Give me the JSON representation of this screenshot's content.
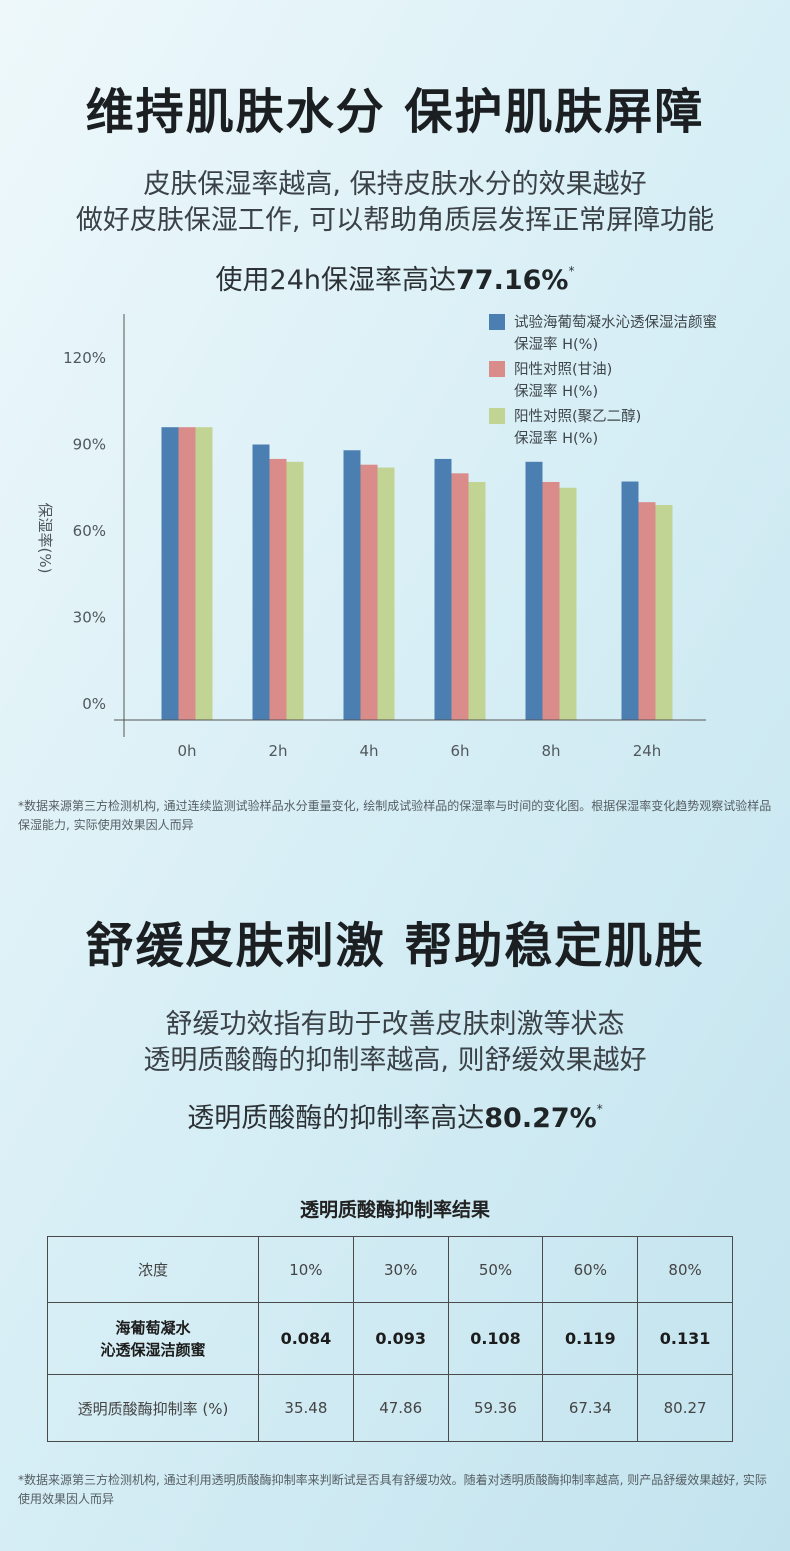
{
  "section1": {
    "title": "维持肌肤水分  保护肌肤屏障",
    "subtitle_line1": "皮肤保湿率越高, 保持皮肤水分的效果越好",
    "subtitle_line2": "做好皮肤保湿工作, 可以帮助角质层发挥正常屏障功能",
    "highlight_prefix": "使用24h保湿率高达",
    "highlight_value": "77.16%",
    "highlight_mark": "*",
    "footnote": "*数据来源第三方检测机构, 通过连续监测试验样品水分重量变化, 绘制成试验样品的保湿率与时间的变化图。根据保湿率变化趋势观察试验样品保湿能力, 实际使用效果因人而异"
  },
  "chart_data": {
    "type": "bar",
    "categories": [
      "0h",
      "2h",
      "4h",
      "6h",
      "8h",
      "24h"
    ],
    "ylabel": "保湿率(%)",
    "ylim": [
      0,
      120
    ],
    "yticks": [
      "0%",
      "30%",
      "60%",
      "90%",
      "120%"
    ],
    "grid": false,
    "legend_position": "top-right",
    "series": [
      {
        "name_line1": "试验海葡萄凝水沁透保湿洁颜蜜",
        "name_line2": "保湿率 H(%)",
        "color": "#4c7fb1",
        "values": [
          96,
          90,
          88,
          85,
          84,
          77.16
        ]
      },
      {
        "name_line1": "阳性对照(甘油)",
        "name_line2": "保湿率 H(%)",
        "color": "#d98c8a",
        "values": [
          96,
          85,
          83,
          80,
          77,
          70
        ]
      },
      {
        "name_line1": "阳性对照(聚乙二醇)",
        "name_line2": "保湿率 H(%)",
        "color": "#c2d494",
        "values": [
          96,
          84,
          82,
          77,
          75,
          69
        ]
      }
    ]
  },
  "section2": {
    "title": "舒缓皮肤刺激  帮助稳定肌肤",
    "subtitle_line1": "舒缓功效指有助于改善皮肤刺激等状态",
    "subtitle_line2": "透明质酸酶的抑制率越高, 则舒缓效果越好",
    "highlight_prefix": "透明质酸酶的抑制率高达",
    "highlight_value": "80.27%",
    "highlight_mark": "*",
    "table_title": "透明质酸酶抑制率结果",
    "footnote": "*数据来源第三方检测机构, 通过利用透明质酸酶抑制率来判断试是否具有舒缓功效。随着对透明质酸酶抑制率越高, 则产品舒缓效果越好, 实际使用效果因人而异"
  },
  "table": {
    "header_label": "浓度",
    "concentrations": [
      "10%",
      "30%",
      "50%",
      "60%",
      "80%"
    ],
    "sample_line1": "海葡萄凝水",
    "sample_line2": "沁透保湿洁颜蜜",
    "sample_values": [
      "0.084",
      "0.093",
      "0.108",
      "0.119",
      "0.131"
    ],
    "rate_label": "透明质酸酶抑制率 (%)",
    "rate_values": [
      "35.48",
      "47.86",
      "59.36",
      "67.34",
      "80.27"
    ]
  }
}
